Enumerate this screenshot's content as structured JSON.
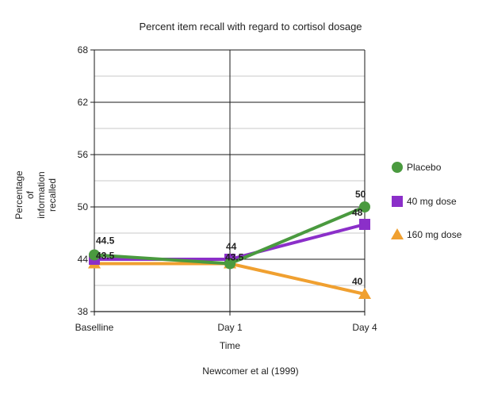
{
  "chart_data": {
    "type": "line",
    "title": "Percent item recall with regard to cortisol dosage",
    "xlabel": "Time",
    "ylabel": [
      "Percentage",
      "of",
      "information",
      "recalled"
    ],
    "caption": "Newcomer et al (1999)",
    "categories": [
      "Baselline",
      "Day 1",
      "Day 4"
    ],
    "ylim": [
      38,
      68
    ],
    "yticks": [
      38,
      44,
      50,
      56,
      62,
      68
    ],
    "minor_gridlines": [
      41,
      47,
      53,
      59,
      65
    ],
    "series": [
      {
        "name": "Placebo",
        "color": "#4a9a3f",
        "marker": "circle",
        "values": [
          44.5,
          43.5,
          50
        ],
        "labels": [
          "44.5",
          "",
          "50"
        ]
      },
      {
        "name": "40 mg dose",
        "color": "#8b2fc9",
        "marker": "square",
        "values": [
          44,
          44,
          48
        ],
        "labels": [
          "",
          "44",
          "48"
        ]
      },
      {
        "name": "160 mg dose",
        "color": "#f0a030",
        "marker": "triangle",
        "values": [
          43.5,
          43.5,
          40
        ],
        "labels": [
          "43.5",
          "43.5",
          "40"
        ]
      }
    ]
  }
}
